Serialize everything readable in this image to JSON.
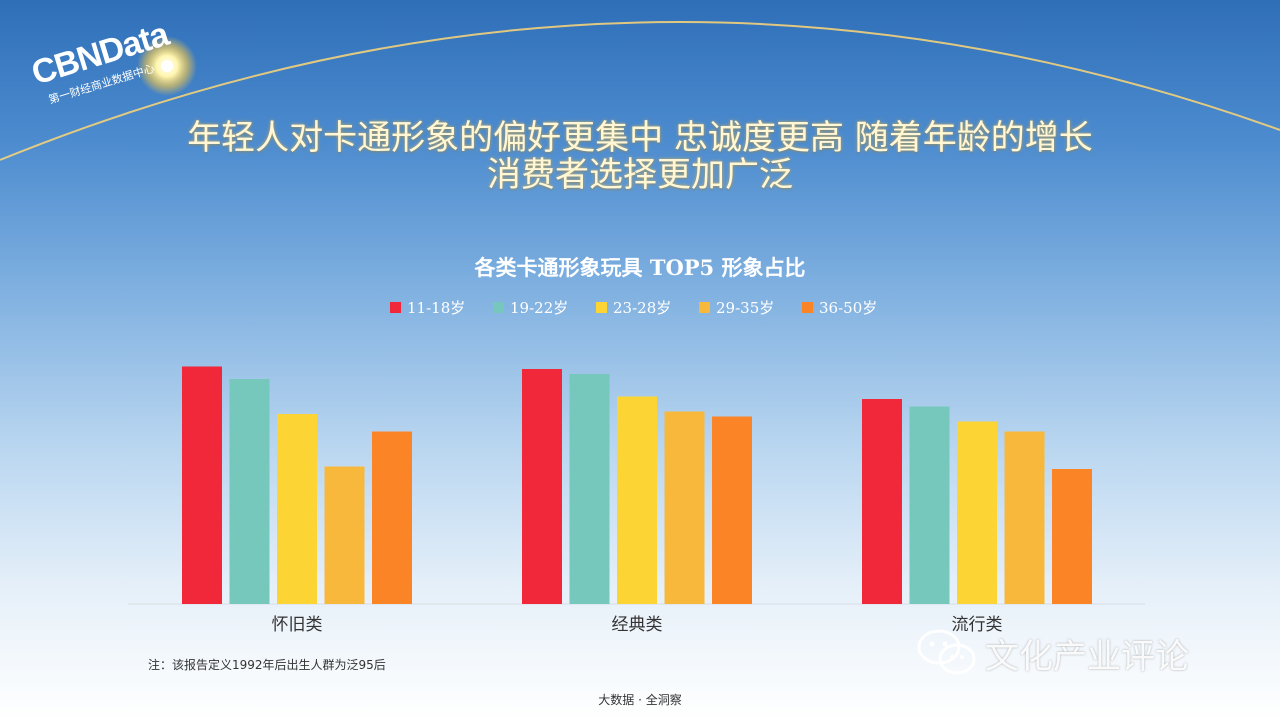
{
  "brand": {
    "logo_text": "CBNData",
    "logo_subtitle": "第一财经商业数据中心"
  },
  "headline": {
    "line1": "年轻人对卡通形象的偏好更集中 忠诚度更高 随着年龄的增长",
    "line2": "消费者选择更加广泛"
  },
  "chart_data": {
    "type": "bar",
    "title": "各类卡通形象玩具 TOP5 形象占比",
    "categories": [
      "怀旧类",
      "经典类",
      "流行类"
    ],
    "legend_position": "top",
    "grid": false,
    "ylim": [
      0,
      100
    ],
    "series": [
      {
        "name": "11-18岁",
        "color": "#f0283a",
        "values": [
          95,
          94,
          82
        ]
      },
      {
        "name": "19-22岁",
        "color": "#76c8bc",
        "values": [
          90,
          92,
          79
        ]
      },
      {
        "name": "23-28岁",
        "color": "#fcd535",
        "values": [
          76,
          83,
          73
        ]
      },
      {
        "name": "29-35岁",
        "color": "#f8b83b",
        "values": [
          55,
          77,
          69
        ]
      },
      {
        "name": "36-50岁",
        "color": "#fb8427",
        "values": [
          69,
          75,
          54
        ]
      }
    ]
  },
  "note": "注：该报告定义1992年后出生人群为泛95后",
  "footer": "大数据 · 全洞察",
  "watermark": "文化产业评论"
}
